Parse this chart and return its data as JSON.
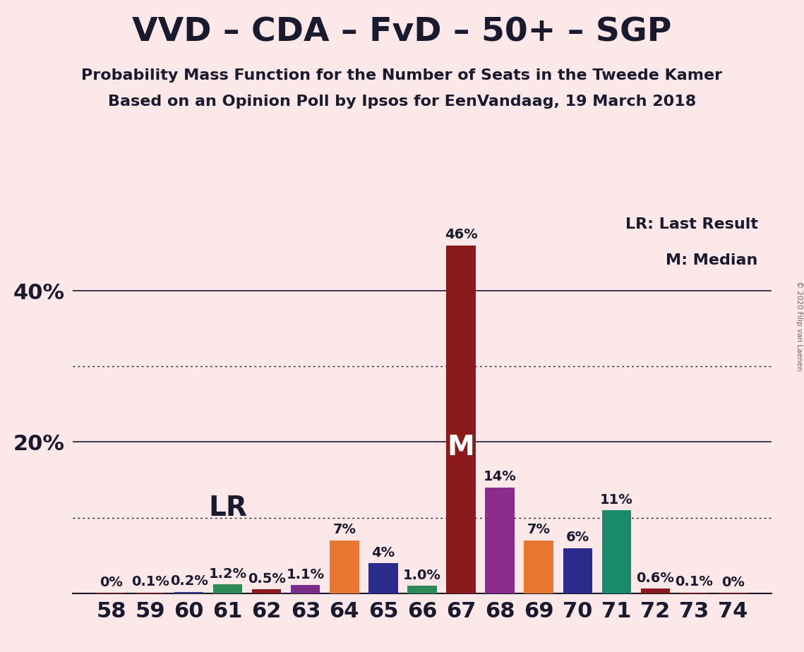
{
  "title": "VVD – CDA – FvD – 50+ – SGP",
  "subtitle1": "Probability Mass Function for the Number of Seats in the Tweede Kamer",
  "subtitle2": "Based on an Opinion Poll by Ipsos for EenVandaag, 19 March 2018",
  "copyright": "© 2020 Filip van Laenen",
  "legend_line1": "LR: Last Result",
  "legend_line2": "M: Median",
  "lr_label": "LR",
  "median_label": "M",
  "median_seat": 67,
  "lr_seat": 61,
  "background_color": "#fce8e8",
  "seats": [
    58,
    59,
    60,
    61,
    62,
    63,
    64,
    65,
    66,
    67,
    68,
    69,
    70,
    71,
    72,
    73,
    74
  ],
  "values": [
    0.05,
    0.1,
    0.2,
    1.2,
    0.5,
    1.1,
    7.0,
    4.0,
    1.0,
    46.0,
    14.0,
    7.0,
    6.0,
    11.0,
    0.6,
    0.1,
    0.05
  ],
  "labels": [
    "0%",
    "0.1%",
    "0.2%",
    "1.2%",
    "0.5%",
    "1.1%",
    "7%",
    "4%",
    "1.0%",
    "46%",
    "14%",
    "7%",
    "6%",
    "11%",
    "0.6%",
    "0.1%",
    "0%"
  ],
  "colors": [
    "#8B1A1A",
    "#8B1A1A",
    "#3A3A8C",
    "#2E8B57",
    "#8B1A1A",
    "#7B2D8B",
    "#E87830",
    "#2B2B8C",
    "#2E8B57",
    "#8B1A1A",
    "#8B2B8B",
    "#E87830",
    "#2B2B8C",
    "#1A8B6A",
    "#8B1A1A",
    "#8B1A1A",
    "#8B1A1A"
  ],
  "ylim": [
    0,
    50
  ],
  "hlines_solid": [
    20,
    40
  ],
  "hlines_dotted": [
    10,
    30
  ],
  "title_fontsize": 34,
  "subtitle_fontsize": 16,
  "ytick_fontsize": 22,
  "xtick_fontsize": 22,
  "bar_label_fontsize": 14,
  "median_fontsize": 28,
  "lr_fontsize": 28
}
